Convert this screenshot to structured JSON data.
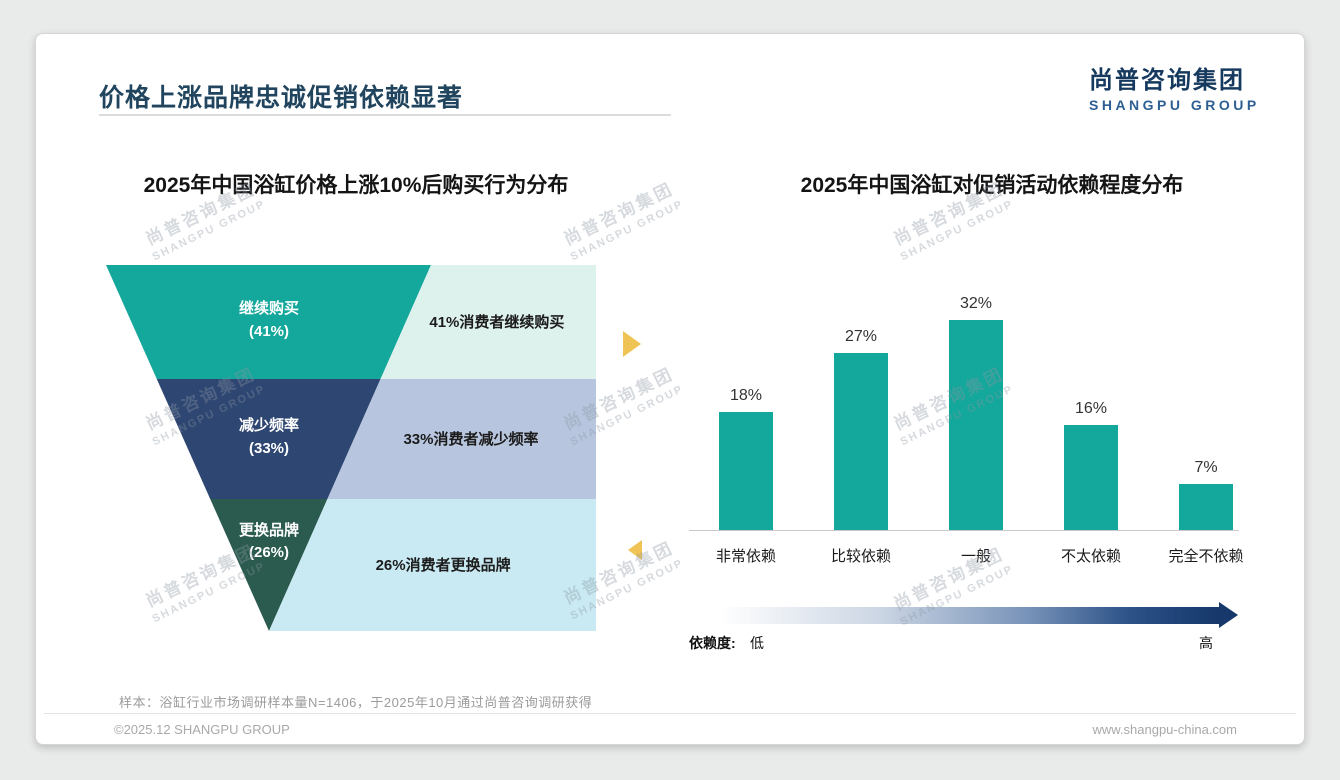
{
  "page": {
    "title": "价格上涨品牌忠诚促销依赖显著",
    "logo": {
      "cn": "尚普咨询集团",
      "en": "SHANGPU GROUP"
    },
    "watermark": {
      "cn": "尚普咨询集团",
      "en": "SHANGPU GROUP"
    },
    "footnote": "样本：浴缸行业市场调研样本量N=1406，于2025年10月通过尚普咨询调研获得",
    "footer": {
      "left": "©2025.12 SHANGPU GROUP",
      "right": "www.shangpu-china.com"
    }
  },
  "colors": {
    "teal": "#14a79b",
    "navy": "#2e4672",
    "deep_green": "#2b5b4f",
    "light_teal": "#ddf1ed",
    "light_periwinkle": "#b7c6de",
    "light_cyan": "#c9eaf3",
    "accent_gold": "#f0c355",
    "bar_teal": "#14a79b",
    "gradient_dark": "#16386b",
    "title_navy": "#21455e"
  },
  "chart_data": [
    {
      "type": "funnel",
      "title": "2025年中国浴缸价格上涨10%后购买行为分布",
      "layers": [
        {
          "label": "继续购买",
          "value_label": "(41%)",
          "value": 41,
          "note": "41%消费者继续购买"
        },
        {
          "label": "减少频率",
          "value_label": "(33%)",
          "value": 33,
          "note": "33%消费者减少频率"
        },
        {
          "label": "更换品牌",
          "value_label": "(26%)",
          "value": 26,
          "note": "26%消费者更换品牌"
        }
      ]
    },
    {
      "type": "bar",
      "title": "2025年中国浴缸对促销活动依赖程度分布",
      "categories": [
        "非常依赖",
        "比较依赖",
        "一般",
        "不太依赖",
        "完全不依赖"
      ],
      "values": [
        18,
        27,
        32,
        16,
        7
      ],
      "value_labels": [
        "18%",
        "27%",
        "32%",
        "16%",
        "7%"
      ],
      "ylim": [
        0,
        35
      ],
      "grid": false,
      "axis": {
        "label": "依赖度:",
        "low": "低",
        "high": "高"
      }
    }
  ]
}
